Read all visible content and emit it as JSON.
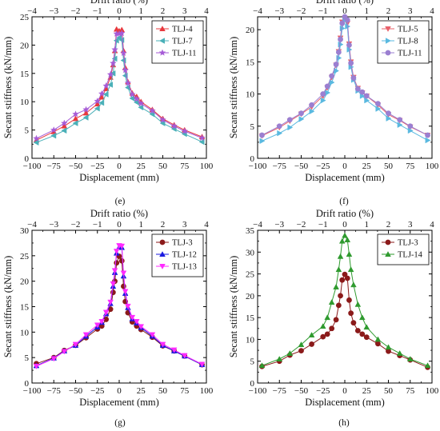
{
  "figure": {
    "panels_order": [
      "e",
      "f",
      "g",
      "h"
    ]
  },
  "chart_data": [
    {
      "id": "e",
      "type": "line",
      "label": "(e)",
      "xlabel": "Displacement (mm)",
      "x2label": "Drift ratio (%)",
      "ylabel": "Secant stiffness (kN/mm)",
      "xlim": [
        -100,
        100
      ],
      "x2lim": [
        -4,
        4
      ],
      "ylim": [
        0,
        25
      ],
      "xticks": [
        -100,
        -75,
        -50,
        -25,
        0,
        25,
        50,
        75,
        100
      ],
      "x2ticks": [
        -4,
        -3,
        -2,
        -1,
        0,
        1,
        2,
        3,
        4
      ],
      "yticks": [
        0,
        5,
        10,
        15,
        20,
        25
      ],
      "legend_position": "top-right",
      "series": [
        {
          "name": "TLJ-4",
          "color": "#e8383d",
          "marker": "triangle-up",
          "x": [
            -95,
            -75,
            -63,
            -50,
            -38,
            -25,
            -20,
            -15,
            -10,
            -7,
            -5,
            -3,
            0,
            3,
            5,
            7,
            10,
            15,
            20,
            25,
            38,
            50,
            63,
            75,
            95
          ],
          "y": [
            3.2,
            4.7,
            5.7,
            7.0,
            8.0,
            9.6,
            10.8,
            12.3,
            14.3,
            16.5,
            19.0,
            22.8,
            22.5,
            22.7,
            19.0,
            16.0,
            13.5,
            11.5,
            10.9,
            10.0,
            8.6,
            7.0,
            5.9,
            5.0,
            3.8
          ]
        },
        {
          "name": "TLJ-7",
          "color": "#4ab0b8",
          "marker": "triangle-left",
          "x": [
            -95,
            -75,
            -63,
            -50,
            -38,
            -25,
            -20,
            -15,
            -10,
            -7,
            -5,
            -3,
            0,
            3,
            5,
            7,
            10,
            15,
            20,
            25,
            38,
            50,
            63,
            75,
            95
          ],
          "y": [
            2.8,
            4.0,
            4.9,
            6.2,
            7.2,
            8.8,
            9.8,
            11.3,
            13.0,
            15.0,
            17.6,
            20.8,
            21.3,
            20.9,
            17.3,
            14.6,
            12.5,
            10.6,
            9.9,
            9.0,
            7.8,
            6.2,
            5.2,
            4.3,
            2.9
          ]
        },
        {
          "name": "TLJ-11",
          "color": "#a65ad6",
          "marker": "star",
          "x": [
            -95,
            -75,
            -63,
            -50,
            -38,
            -25,
            -20,
            -15,
            -10,
            -7,
            -5,
            -3,
            0,
            3,
            5,
            7,
            10,
            15,
            20,
            25,
            38,
            50,
            63,
            75,
            95
          ],
          "y": [
            3.5,
            5.0,
            6.2,
            7.8,
            8.6,
            10.1,
            11.4,
            12.8,
            14.8,
            16.8,
            19.2,
            22.0,
            22.0,
            22.1,
            18.6,
            15.6,
            13.3,
            11.3,
            10.5,
            9.7,
            8.4,
            6.8,
            5.7,
            4.8,
            3.6
          ]
        }
      ]
    },
    {
      "id": "f",
      "type": "line",
      "label": "(f)",
      "xlabel": "Displacement (mm)",
      "x2label": "Drift ratio (%)",
      "ylabel": "Secant stiffness (kN/mm)",
      "xlim": [
        -100,
        100
      ],
      "x2lim": [
        -4,
        4
      ],
      "ylim": [
        0,
        22
      ],
      "xticks": [
        -100,
        -75,
        -50,
        -25,
        0,
        25,
        50,
        75,
        100
      ],
      "x2ticks": [
        -4,
        -3,
        -2,
        -1,
        0,
        1,
        2,
        3,
        4
      ],
      "yticks": [
        0,
        5,
        10,
        15,
        20
      ],
      "legend_position": "top-right",
      "series": [
        {
          "name": "TLJ-5",
          "color": "#e8606a",
          "marker": "triangle-down",
          "x": [
            -95,
            -75,
            -63,
            -50,
            -38,
            -25,
            -20,
            -15,
            -10,
            -7,
            -5,
            -3,
            0,
            3,
            5,
            7,
            10,
            15,
            20,
            25,
            38,
            50,
            63,
            75,
            95
          ],
          "y": [
            3.5,
            4.8,
            5.8,
            6.9,
            8.0,
            9.7,
            11.0,
            12.6,
            14.5,
            16.6,
            18.7,
            21.2,
            21.8,
            21.0,
            17.8,
            15.0,
            12.6,
            10.9,
            10.2,
            9.7,
            8.3,
            6.8,
            5.9,
            4.9,
            3.6
          ]
        },
        {
          "name": "TLJ-8",
          "color": "#5ab9e0",
          "marker": "triangle-right",
          "x": [
            -95,
            -75,
            -63,
            -50,
            -38,
            -25,
            -20,
            -15,
            -10,
            -7,
            -5,
            -3,
            0,
            3,
            5,
            7,
            10,
            15,
            20,
            25,
            38,
            50,
            63,
            75,
            95
          ],
          "y": [
            2.7,
            3.9,
            4.8,
            6.1,
            7.3,
            9.0,
            10.2,
            11.8,
            13.6,
            15.6,
            17.7,
            20.2,
            21.5,
            20.5,
            16.9,
            14.2,
            12.2,
            10.5,
            9.7,
            9.0,
            7.7,
            6.2,
            5.2,
            4.3,
            2.8
          ]
        },
        {
          "name": "TLJ-11",
          "color": "#9b7fd1",
          "marker": "circle",
          "x": [
            -95,
            -75,
            -63,
            -50,
            -38,
            -25,
            -20,
            -15,
            -10,
            -7,
            -5,
            -3,
            0,
            3,
            5,
            7,
            10,
            15,
            20,
            25,
            38,
            50,
            63,
            75,
            95
          ],
          "y": [
            3.6,
            5.0,
            6.0,
            7.0,
            8.3,
            10.0,
            11.2,
            12.8,
            14.6,
            16.5,
            18.5,
            21.0,
            22.0,
            21.5,
            17.6,
            14.8,
            12.5,
            10.8,
            10.3,
            9.7,
            8.5,
            7.0,
            6.0,
            5.0,
            3.6
          ]
        }
      ]
    },
    {
      "id": "g",
      "type": "line",
      "label": "(g)",
      "xlabel": "Displacement (mm)",
      "x2label": "Drift ratio (%)",
      "ylabel": "Secant stiffness (kN/mm)",
      "xlim": [
        -100,
        100
      ],
      "x2lim": [
        -4,
        4
      ],
      "ylim": [
        0,
        30
      ],
      "xticks": [
        -100,
        -75,
        -50,
        -25,
        0,
        25,
        50,
        75,
        100
      ],
      "x2ticks": [
        -4,
        -3,
        -2,
        -1,
        0,
        1,
        2,
        3,
        4
      ],
      "yticks": [
        0,
        5,
        10,
        15,
        20,
        25,
        30
      ],
      "legend_position": "top-right",
      "series": [
        {
          "name": "TLJ-3",
          "color": "#8b1a1a",
          "marker": "circle",
          "x": [
            -95,
            -75,
            -63,
            -50,
            -38,
            -25,
            -20,
            -15,
            -10,
            -7,
            -5,
            -3,
            0,
            3,
            5,
            7,
            10,
            15,
            20,
            25,
            38,
            50,
            63,
            75,
            95
          ],
          "y": [
            3.8,
            5.0,
            6.4,
            7.4,
            8.9,
            10.6,
            11.2,
            12.5,
            14.5,
            17.8,
            20.0,
            23.6,
            24.9,
            24.0,
            19.0,
            16.0,
            13.8,
            12.0,
            11.2,
            10.5,
            9.0,
            7.3,
            6.3,
            5.3,
            3.6
          ]
        },
        {
          "name": "TLJ-12",
          "color": "#1a1ae0",
          "marker": "triangle-up",
          "x": [
            -95,
            -75,
            -63,
            -50,
            -38,
            -25,
            -20,
            -15,
            -10,
            -7,
            -5,
            -3,
            0,
            3,
            5,
            7,
            10,
            15,
            20,
            25,
            38,
            50,
            63,
            75,
            95
          ],
          "y": [
            3.4,
            4.9,
            6.3,
            7.4,
            9.2,
            11.0,
            11.9,
            13.6,
            15.6,
            19.0,
            21.7,
            25.5,
            26.7,
            26.6,
            21.0,
            17.6,
            14.8,
            12.6,
            11.8,
            10.9,
            9.2,
            7.4,
            6.3,
            5.3,
            3.6
          ]
        },
        {
          "name": "TLJ-13",
          "color": "#ff2bff",
          "marker": "triangle-down",
          "x": [
            -95,
            -75,
            -63,
            -50,
            -38,
            -25,
            -20,
            -15,
            -10,
            -7,
            -5,
            -3,
            0,
            3,
            5,
            7,
            10,
            15,
            20,
            25,
            38,
            50,
            63,
            75,
            95
          ],
          "y": [
            3.3,
            4.8,
            6.2,
            7.6,
            9.5,
            11.4,
            12.1,
            13.9,
            15.9,
            19.5,
            22.1,
            25.9,
            27.0,
            26.9,
            21.6,
            18.0,
            15.1,
            12.9,
            12.1,
            11.1,
            9.5,
            7.6,
            6.5,
            5.4,
            3.7
          ]
        }
      ]
    },
    {
      "id": "h",
      "type": "line",
      "label": "(h)",
      "xlabel": "Displacement (mm)",
      "x2label": "Drift ratio (%)",
      "ylabel": "Secant stiffness (kN/mm)",
      "xlim": [
        -100,
        100
      ],
      "x2lim": [
        -4,
        4
      ],
      "ylim": [
        0,
        35
      ],
      "xticks": [
        -100,
        -75,
        -50,
        -25,
        0,
        25,
        50,
        75,
        100
      ],
      "x2ticks": [
        -4,
        -3,
        -2,
        -1,
        0,
        1,
        2,
        3,
        4
      ],
      "yticks": [
        0,
        5,
        10,
        15,
        20,
        25,
        30,
        35
      ],
      "legend_position": "top-right",
      "series": [
        {
          "name": "TLJ-3",
          "color": "#8b1a1a",
          "marker": "circle",
          "x": [
            -95,
            -75,
            -63,
            -50,
            -38,
            -25,
            -20,
            -15,
            -10,
            -7,
            -5,
            -3,
            0,
            3,
            5,
            7,
            10,
            15,
            20,
            25,
            38,
            50,
            63,
            75,
            95
          ],
          "y": [
            3.8,
            5.0,
            6.4,
            7.4,
            8.9,
            10.6,
            11.2,
            12.5,
            14.5,
            17.8,
            20.0,
            23.6,
            24.9,
            24.0,
            19.0,
            16.0,
            13.8,
            12.0,
            11.2,
            10.5,
            9.0,
            7.3,
            6.3,
            5.3,
            3.6
          ]
        },
        {
          "name": "TLJ-14",
          "color": "#2e9a2e",
          "marker": "triangle-up",
          "x": [
            -95,
            -75,
            -63,
            -50,
            -38,
            -25,
            -20,
            -15,
            -10,
            -7,
            -5,
            -3,
            0,
            3,
            5,
            7,
            10,
            15,
            20,
            25,
            38,
            50,
            63,
            75,
            95
          ],
          "y": [
            4.0,
            5.5,
            6.8,
            8.8,
            11.0,
            13.0,
            15.0,
            18.5,
            22.0,
            26.0,
            29.0,
            32.5,
            33.8,
            32.8,
            29.5,
            26.0,
            22.5,
            18.0,
            15.0,
            12.8,
            10.0,
            8.2,
            6.8,
            5.5,
            4.0
          ]
        }
      ]
    }
  ]
}
